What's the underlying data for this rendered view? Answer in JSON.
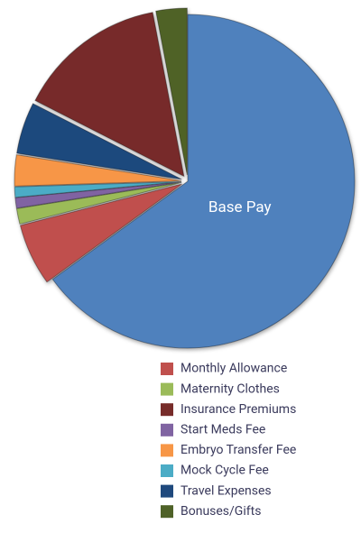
{
  "chart_data": {
    "type": "pie",
    "categories": [
      "Base Pay",
      "Monthly Allowance",
      "Maternity Clothes",
      "Start Meds Fee",
      "Mock Cycle Fee",
      "Embryo Transfer Fee",
      "Travel Expenses",
      "Insurance Premiums",
      "Bonuses/Gifts"
    ],
    "values": [
      65,
      6,
      1.5,
      1,
      1,
      3,
      5,
      14.5,
      3
    ],
    "colors": [
      "#4f81bd",
      "#c0504d",
      "#9bbb59",
      "#8064a2",
      "#4bacc6",
      "#f79646",
      "#1f497d",
      "#772c2a",
      "#4f6228"
    ],
    "legend": [
      "Monthly Allowance",
      "Maternity Clothes",
      "Insurance Premiums",
      "Start Meds Fee",
      "Embryo Transfer Fee",
      "Mock Cycle Fee",
      "Travel Expenses",
      "Bonuses/Gifts"
    ]
  }
}
